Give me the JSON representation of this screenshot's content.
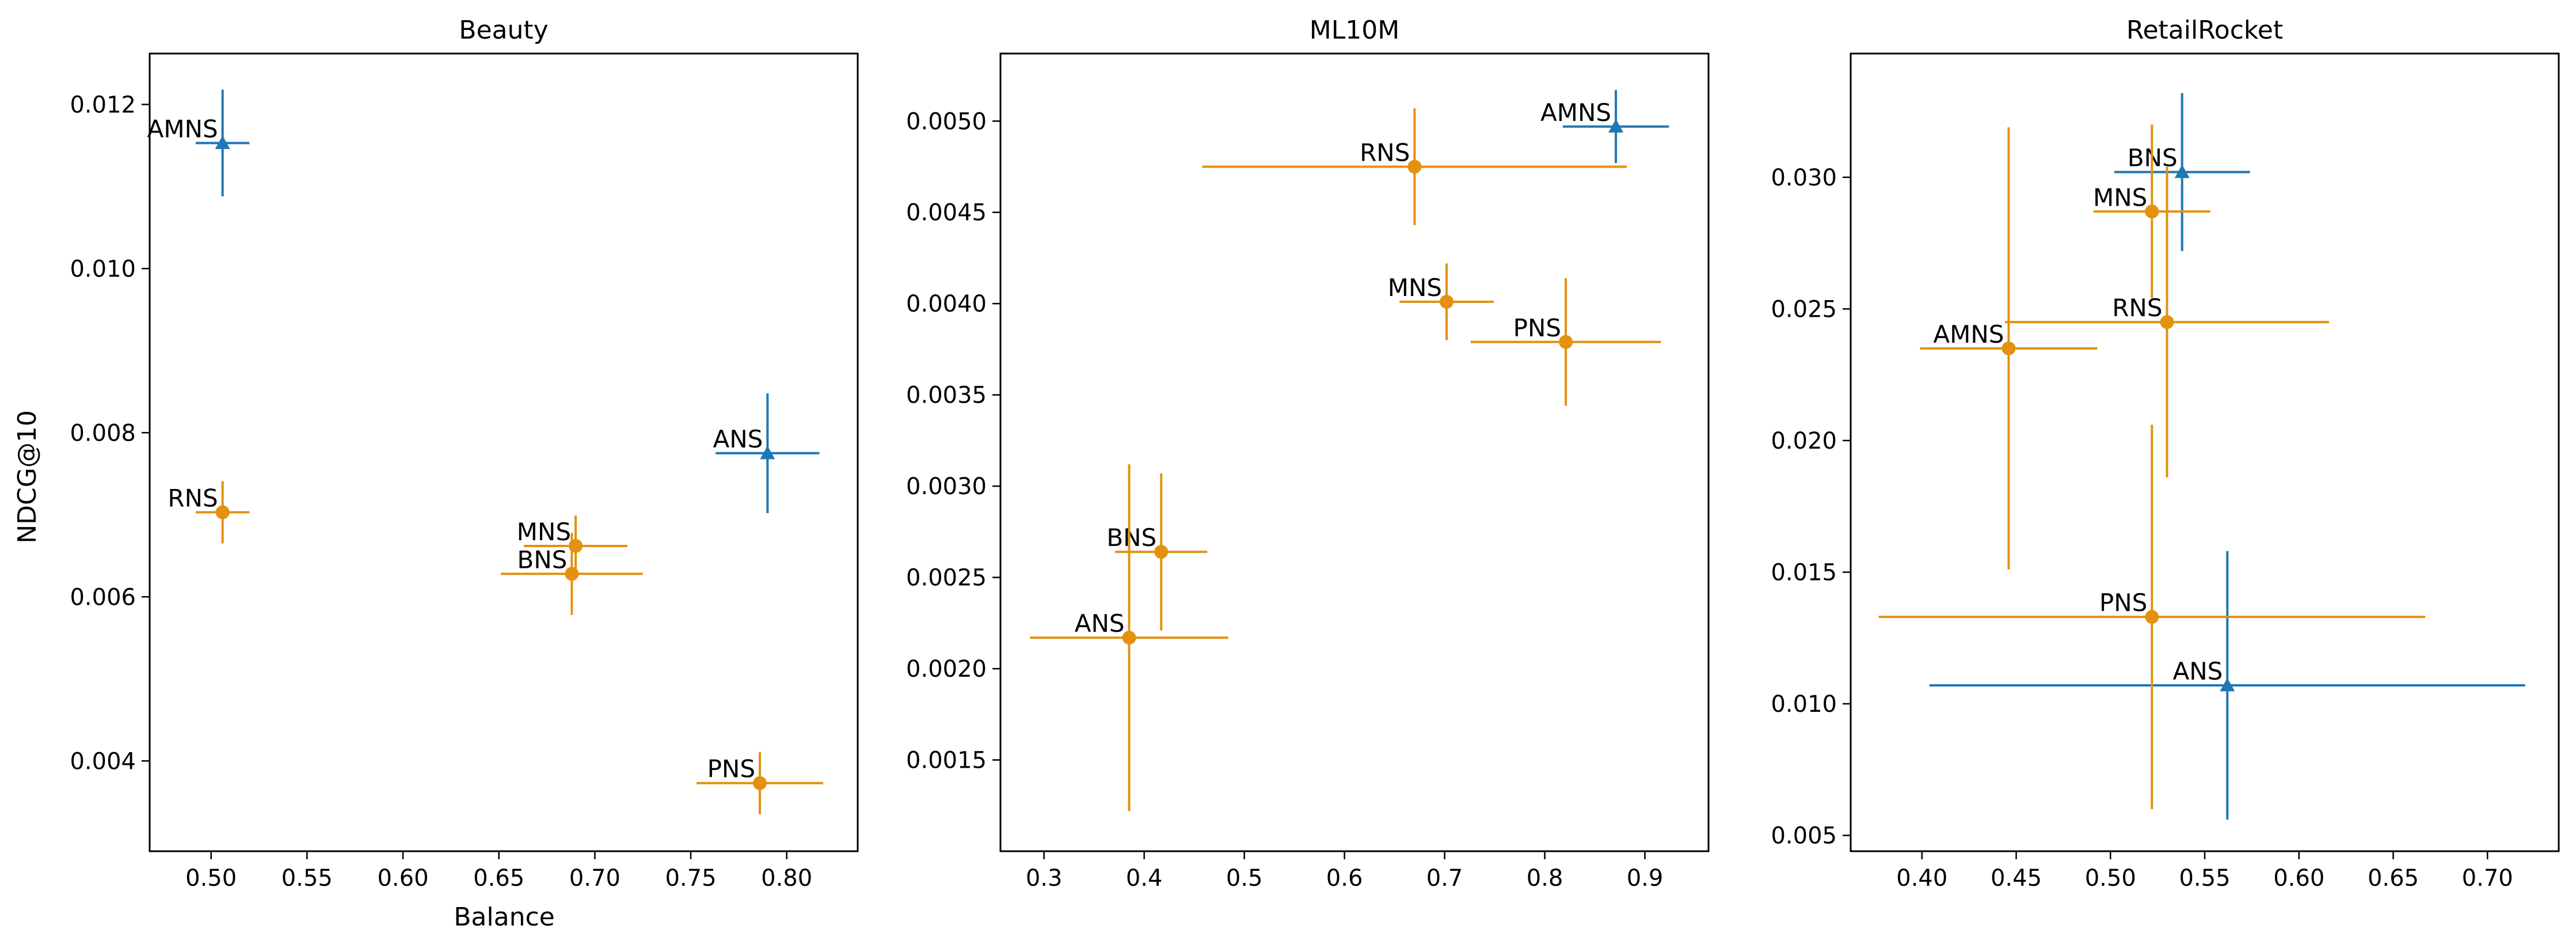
{
  "figure": {
    "ylabel": "NDCG@10",
    "xlabel": "Balance"
  },
  "chart_data": [
    {
      "type": "scatter",
      "title": "Beauty",
      "xlabel": "Balance",
      "ylabel": "NDCG@10",
      "xlim": [
        0.468,
        0.837
      ],
      "ylim": [
        0.0029,
        0.01262
      ],
      "xticks": [
        0.5,
        0.55,
        0.6,
        0.65,
        0.7,
        0.75,
        0.8
      ],
      "xtick_labels": [
        "0.50",
        "0.55",
        "0.60",
        "0.65",
        "0.70",
        "0.75",
        "0.80"
      ],
      "yticks": [
        0.004,
        0.006,
        0.008,
        0.01,
        0.012
      ],
      "ytick_labels": [
        "0.004",
        "0.006",
        "0.008",
        "0.010",
        "0.012"
      ],
      "points": [
        {
          "label": "AMNS",
          "x": 0.506,
          "y": 0.01153,
          "xerr": [
            0.014,
            0.014
          ],
          "yerr": [
            0.00065,
            0.00065
          ],
          "group": "blue"
        },
        {
          "label": "ANS",
          "x": 0.79,
          "y": 0.00775,
          "xerr": [
            0.027,
            0.027
          ],
          "yerr": [
            0.00073,
            0.00073
          ],
          "group": "blue"
        },
        {
          "label": "RNS",
          "x": 0.506,
          "y": 0.00703,
          "xerr": [
            0.014,
            0.014
          ],
          "yerr": [
            0.00038,
            0.00038
          ],
          "group": "orange"
        },
        {
          "label": "MNS",
          "x": 0.69,
          "y": 0.00662,
          "xerr": [
            0.027,
            0.027
          ],
          "yerr": [
            0.00037,
            0.00037
          ],
          "group": "orange"
        },
        {
          "label": "BNS",
          "x": 0.688,
          "y": 0.00628,
          "xerr": [
            0.037,
            0.037
          ],
          "yerr": [
            0.0005,
            0.0005
          ],
          "group": "orange"
        },
        {
          "label": "PNS",
          "x": 0.786,
          "y": 0.00373,
          "xerr": [
            0.033,
            0.033
          ],
          "yerr": [
            0.00038,
            0.00038
          ],
          "group": "orange"
        }
      ]
    },
    {
      "type": "scatter",
      "title": "ML10M",
      "xlabel": "",
      "ylabel": "",
      "xlim": [
        0.2565,
        0.9635
      ],
      "ylim": [
        0.001,
        0.00537
      ],
      "xticks": [
        0.3,
        0.4,
        0.5,
        0.6,
        0.7,
        0.8,
        0.9
      ],
      "xtick_labels": [
        "0.3",
        "0.4",
        "0.5",
        "0.6",
        "0.7",
        "0.8",
        "0.9"
      ],
      "yticks": [
        0.0015,
        0.002,
        0.0025,
        0.003,
        0.0035,
        0.004,
        0.0045,
        0.005
      ],
      "ytick_labels": [
        "0.0015",
        "0.0020",
        "0.0025",
        "0.0030",
        "0.0035",
        "0.0040",
        "0.0045",
        "0.0050"
      ],
      "points": [
        {
          "label": "AMNS",
          "x": 0.871,
          "y": 0.00497,
          "xerr": [
            0.053,
            0.053
          ],
          "yerr": [
            0.0002,
            0.0002
          ],
          "group": "blue"
        },
        {
          "label": "RNS",
          "x": 0.67,
          "y": 0.00475,
          "xerr": [
            0.212,
            0.212
          ],
          "yerr": [
            0.00032,
            0.00032
          ],
          "group": "orange"
        },
        {
          "label": "MNS",
          "x": 0.702,
          "y": 0.00401,
          "xerr": [
            0.047,
            0.047
          ],
          "yerr": [
            0.00021,
            0.00021
          ],
          "group": "orange"
        },
        {
          "label": "PNS",
          "x": 0.821,
          "y": 0.00379,
          "xerr": [
            0.095,
            0.095
          ],
          "yerr": [
            0.00035,
            0.00035
          ],
          "group": "orange"
        },
        {
          "label": "BNS",
          "x": 0.417,
          "y": 0.00264,
          "xerr": [
            0.046,
            0.046
          ],
          "yerr": [
            0.00043,
            0.00043
          ],
          "group": "orange"
        },
        {
          "label": "ANS",
          "x": 0.385,
          "y": 0.00217,
          "xerr": [
            0.099,
            0.099
          ],
          "yerr": [
            0.00095,
            0.00095
          ],
          "group": "orange"
        }
      ]
    },
    {
      "type": "scatter",
      "title": "RetailRocket",
      "xlabel": "",
      "ylabel": "",
      "xlim": [
        0.3622,
        0.7378
      ],
      "ylim": [
        0.0044,
        0.0347
      ],
      "xticks": [
        0.4,
        0.45,
        0.5,
        0.55,
        0.6,
        0.65,
        0.7
      ],
      "xtick_labels": [
        "0.40",
        "0.45",
        "0.50",
        "0.55",
        "0.60",
        "0.65",
        "0.70"
      ],
      "yticks": [
        0.005,
        0.01,
        0.015,
        0.02,
        0.025,
        0.03
      ],
      "ytick_labels": [
        "0.005",
        "0.010",
        "0.015",
        "0.020",
        "0.025",
        "0.030"
      ],
      "points": [
        {
          "label": "BNS",
          "x": 0.538,
          "y": 0.0302,
          "xerr": [
            0.036,
            0.036
          ],
          "yerr": [
            0.003,
            0.003
          ],
          "group": "blue"
        },
        {
          "label": "ANS",
          "x": 0.562,
          "y": 0.0107,
          "xerr": [
            0.158,
            0.158
          ],
          "yerr": [
            0.0051,
            0.0051
          ],
          "group": "blue"
        },
        {
          "label": "MNS",
          "x": 0.522,
          "y": 0.0287,
          "xerr": [
            0.031,
            0.031
          ],
          "yerr": [
            0.0033,
            0.0033
          ],
          "group": "orange"
        },
        {
          "label": "RNS",
          "x": 0.53,
          "y": 0.0245,
          "xerr": [
            0.086,
            0.086
          ],
          "yerr": [
            0.0059,
            0.0059
          ],
          "group": "orange"
        },
        {
          "label": "AMNS",
          "x": 0.446,
          "y": 0.0235,
          "xerr": [
            0.047,
            0.047
          ],
          "yerr": [
            0.0084,
            0.0084
          ],
          "group": "orange"
        },
        {
          "label": "PNS",
          "x": 0.522,
          "y": 0.0133,
          "xerr": [
            0.145,
            0.145
          ],
          "yerr": [
            0.0073,
            0.0073
          ],
          "group": "orange"
        }
      ]
    }
  ],
  "colors": {
    "blue": "#1f77b4",
    "orange": "#e39110"
  },
  "markers": {
    "blue": "triangle",
    "orange": "circle"
  }
}
